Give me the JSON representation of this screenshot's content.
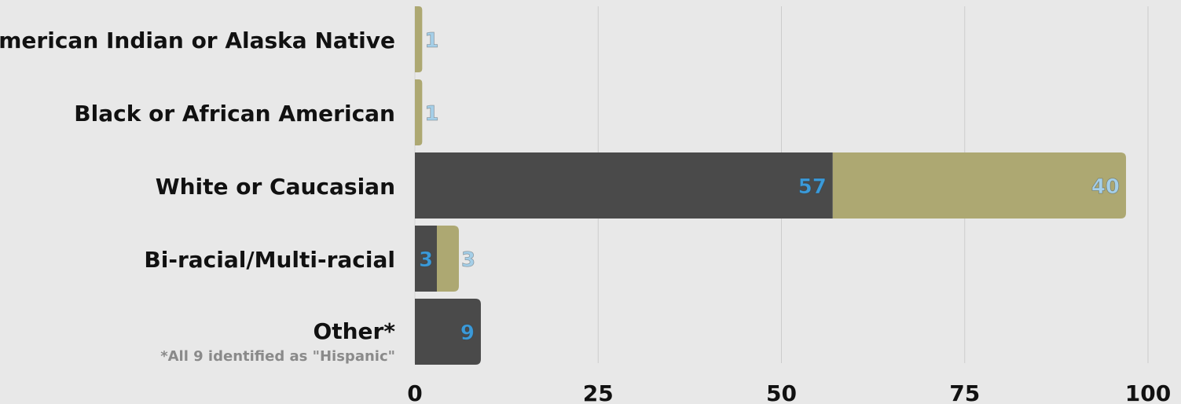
{
  "chart_data": {
    "type": "bar",
    "orientation": "horizontal",
    "stacked": true,
    "title": "",
    "xlabel": "",
    "ylabel": "",
    "xlim": [
      0,
      100
    ],
    "x_ticks": [
      0,
      25,
      50,
      75,
      100
    ],
    "grid": "vertical",
    "legend": "none",
    "categories": [
      "American Indian or Alaska Native",
      "Black or African American",
      "White or Caucasian",
      "Bi-racial/Multi-racial",
      "Other*"
    ],
    "series": [
      {
        "color": "#4a4a4a",
        "label_color": "#3b9ad9",
        "values": [
          0,
          0,
          57,
          3,
          9
        ]
      },
      {
        "color": "#ada872",
        "label_color": "#a5cfe8",
        "values": [
          1,
          1,
          40,
          3,
          0
        ]
      }
    ],
    "annotations": [
      {
        "category": "Other*",
        "text": "*All 9 identified as \"Hispanic\""
      }
    ]
  },
  "colors": {
    "background": "#e8e8e8",
    "grid": "#cccccc",
    "text": "#111111",
    "note": "#8a8a8a"
  }
}
